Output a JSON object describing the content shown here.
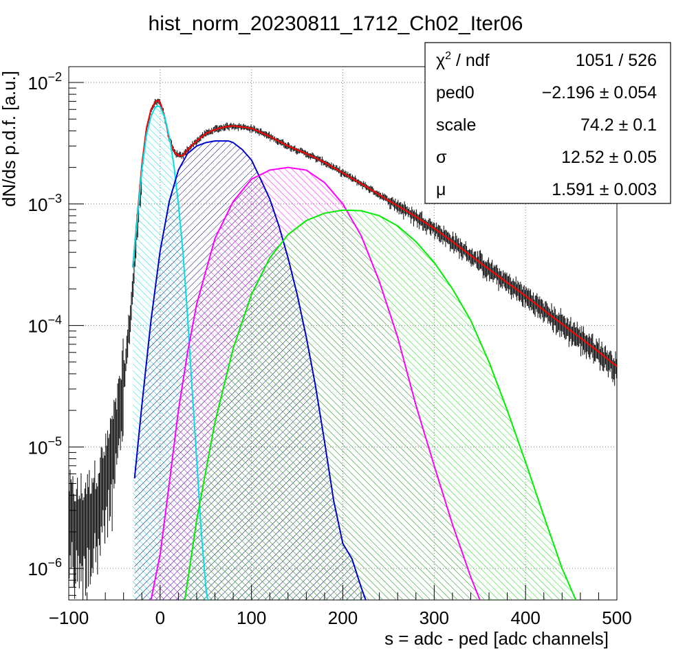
{
  "chart_data": {
    "type": "line",
    "title": "hist_norm_20230811_1712_Ch02_Iter06",
    "xlabel": "s = adc - ped [adc channels]",
    "ylabel": "dN/ds p.d.f. [a.u.]",
    "xlim": [
      -100,
      500
    ],
    "ylim": [
      5.5e-07,
      0.0135
    ],
    "y_scale": "log",
    "grid": true,
    "x_ticks": [
      {
        "value": -100,
        "label": "−100"
      },
      {
        "value": 0,
        "label": "0"
      },
      {
        "value": 100,
        "label": "100"
      },
      {
        "value": 200,
        "label": "200"
      },
      {
        "value": 300,
        "label": "300"
      },
      {
        "value": 400,
        "label": "400"
      },
      {
        "value": 500,
        "label": "500"
      }
    ],
    "y_ticks": [
      {
        "value": 1e-06,
        "base": "10",
        "exp": "−6"
      },
      {
        "value": 1e-05,
        "base": "10",
        "exp": "−5"
      },
      {
        "value": 0.0001,
        "base": "10",
        "exp": "−4"
      },
      {
        "value": 0.001,
        "base": "10",
        "exp": "−3"
      },
      {
        "value": 0.01,
        "base": "10",
        "exp": "−2"
      }
    ],
    "histogram_envelope": {
      "x": [
        -100,
        -90,
        -80,
        -70,
        -60,
        -50,
        -40,
        -35,
        -30,
        -25,
        -20,
        -15,
        -10,
        -5,
        -2,
        0,
        5,
        10,
        15,
        20,
        25,
        30,
        40,
        50,
        60,
        70,
        80,
        90,
        100,
        120,
        140,
        160,
        180,
        200,
        225,
        250,
        275,
        300,
        325,
        350,
        375,
        400,
        425,
        450,
        475,
        500
      ],
      "y": [
        3e-06,
        2.5e-06,
        3e-06,
        4e-06,
        6e-06,
        1.2e-05,
        3.5e-05,
        8e-05,
        0.0002,
        0.0007,
        0.0018,
        0.0038,
        0.0058,
        0.007,
        0.0071,
        0.0068,
        0.0052,
        0.0035,
        0.0027,
        0.0025,
        0.0025,
        0.0028,
        0.0033,
        0.0038,
        0.0041,
        0.0043,
        0.0044,
        0.0043,
        0.0042,
        0.0036,
        0.003,
        0.0026,
        0.0022,
        0.0018,
        0.0014,
        0.00107,
        0.00083,
        0.00063,
        0.00046,
        0.00033,
        0.00024,
        0.000175,
        0.000125,
        9e-05,
        6.5e-05,
        4.5e-05
      ]
    },
    "series": [
      {
        "type": "fit",
        "color": "#ff0000",
        "x": [
          -30,
          -20,
          -15,
          -10,
          -5,
          -2,
          0,
          5,
          10,
          15,
          20,
          25,
          30,
          40,
          50,
          60,
          70,
          80,
          90,
          100,
          120,
          140,
          160,
          180,
          200,
          225,
          250,
          275,
          300,
          325,
          350,
          375,
          400,
          425,
          450,
          475,
          500
        ],
        "y": [
          0.0003,
          0.0021,
          0.0042,
          0.006,
          0.007,
          0.0071,
          0.0069,
          0.0052,
          0.0034,
          0.0027,
          0.0025,
          0.0025,
          0.0028,
          0.0033,
          0.0038,
          0.0041,
          0.0043,
          0.0044,
          0.0043,
          0.0042,
          0.0036,
          0.003,
          0.0026,
          0.0022,
          0.0018,
          0.0014,
          0.00107,
          0.00083,
          0.00063,
          0.00046,
          0.00033,
          0.00024,
          0.000175,
          0.000125,
          9e-05,
          6.5e-05,
          4.6e-05
        ]
      },
      {
        "type": "component",
        "color": "#00e0e8",
        "hatch": "right",
        "x": [
          -30,
          -20,
          -15,
          -10,
          -5,
          -2,
          0,
          5,
          10,
          15,
          20,
          25,
          30,
          35,
          40,
          45,
          50,
          52
        ],
        "y": [
          0.0003,
          0.0019,
          0.0037,
          0.0053,
          0.0063,
          0.0064,
          0.0063,
          0.0052,
          0.0036,
          0.0021,
          0.001,
          0.0004,
          0.00012,
          3e-05,
          8e-06,
          2e-06,
          7e-07,
          5.5e-07
        ]
      },
      {
        "type": "component",
        "color": "#0000cc",
        "hatch": "left",
        "x": [
          -28,
          -20,
          -10,
          0,
          10,
          20,
          30,
          40,
          50,
          60,
          70,
          75,
          80,
          90,
          100,
          110,
          120,
          130,
          140,
          150,
          160,
          170,
          180,
          190,
          200,
          210,
          220,
          225
        ],
        "y": [
          5.5e-06,
          2.2e-05,
          0.00011,
          0.00041,
          0.00105,
          0.0019,
          0.0026,
          0.003,
          0.0032,
          0.0033,
          0.0033,
          0.0033,
          0.0032,
          0.0028,
          0.0023,
          0.0016,
          0.0011,
          0.00066,
          0.00036,
          0.00018,
          8e-05,
          3.2e-05,
          1.1e-05,
          3.6e-06,
          1.6e-06,
          1.2e-06,
          7e-07,
          5.5e-07
        ]
      },
      {
        "type": "component",
        "color": "#ff00ff",
        "hatch": "right",
        "x": [
          -10,
          0,
          10,
          20,
          30,
          40,
          60,
          80,
          100,
          120,
          140,
          160,
          180,
          200,
          220,
          240,
          260,
          280,
          300,
          320,
          340,
          350
        ],
        "y": [
          5.5e-07,
          1.3e-06,
          5e-06,
          2e-05,
          6e-05,
          0.00015,
          0.00052,
          0.00105,
          0.0016,
          0.0019,
          0.002,
          0.0019,
          0.0015,
          0.001,
          0.00055,
          0.00023,
          8e-05,
          2.2e-05,
          7e-06,
          2.3e-06,
          8.5e-07,
          5.5e-07
        ]
      },
      {
        "type": "component",
        "color": "#00ee00",
        "hatch": "right",
        "x": [
          27,
          40,
          60,
          80,
          100,
          120,
          140,
          160,
          180,
          200,
          220,
          240,
          260,
          280,
          300,
          320,
          340,
          360,
          380,
          400,
          420,
          440,
          455
        ],
        "y": [
          5.5e-07,
          2.5e-06,
          1.6e-05,
          6.5e-05,
          0.00018,
          0.00036,
          0.00056,
          0.00073,
          0.00084,
          0.00089,
          0.00088,
          0.0008,
          0.00066,
          0.00049,
          0.00033,
          0.0002,
          0.00011,
          5e-05,
          2e-05,
          7.5e-06,
          2.7e-06,
          1e-06,
          5.5e-07
        ]
      }
    ]
  },
  "stats_box": {
    "rows": [
      {
        "name_main": "χ",
        "name_sup": "2",
        "name_rest": " / ndf",
        "value": "1051 / 526"
      },
      {
        "name_main": "ped0",
        "name_sup": "",
        "name_rest": "",
        "value": "−2.196 ± 0.054"
      },
      {
        "name_main": "scale",
        "name_sup": "",
        "name_rest": "",
        "value": "74.2 ± 0.1"
      },
      {
        "name_main": "σ",
        "name_sup": "",
        "name_rest": "",
        "value": "12.52 ± 0.05"
      },
      {
        "name_main": "μ",
        "name_sup": "",
        "name_rest": "",
        "value": "1.591 ± 0.003"
      }
    ]
  }
}
